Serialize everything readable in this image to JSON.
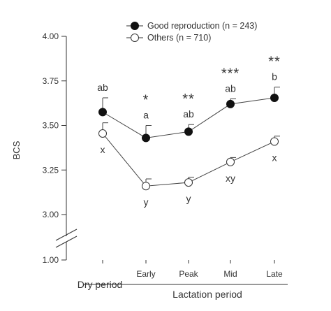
{
  "chart_data": {
    "type": "line",
    "title": "",
    "ylabel": "BCS",
    "xlabel": "",
    "ylim": [
      3.0,
      4.0
    ],
    "y_break_label": "1.00",
    "y_ticks": [
      "3.00",
      "3.25",
      "3.50",
      "3.75",
      "4.00"
    ],
    "y_tick_values": [
      3.0,
      3.25,
      3.5,
      3.75,
      4.0
    ],
    "categories": [
      "",
      "Early",
      "Peak",
      "Mid",
      "Late"
    ],
    "group_labels": {
      "dry": "Dry period",
      "lactation": "Lactation period"
    },
    "legend_position": "top-right",
    "grid": false,
    "series": [
      {
        "name": "Good reproduction (n = 243)",
        "marker": "filled-circle",
        "color": "#111111",
        "values": [
          3.575,
          3.43,
          3.465,
          3.62,
          3.655
        ],
        "error": [
          0.08,
          0.07,
          0.04,
          0.03,
          0.06
        ],
        "letters": [
          "ab",
          "a",
          "ab",
          "ab",
          "b"
        ]
      },
      {
        "name": "Others (n = 710)",
        "marker": "open-circle",
        "color": "#111111",
        "values": [
          3.455,
          3.16,
          3.18,
          3.295,
          3.41
        ],
        "error": [
          0.06,
          0.04,
          0.03,
          0.025,
          0.03
        ],
        "letters": [
          "x",
          "y",
          "y",
          "xy",
          "x"
        ]
      }
    ],
    "significance": [
      "",
      "*",
      "**",
      "***",
      "**"
    ]
  }
}
